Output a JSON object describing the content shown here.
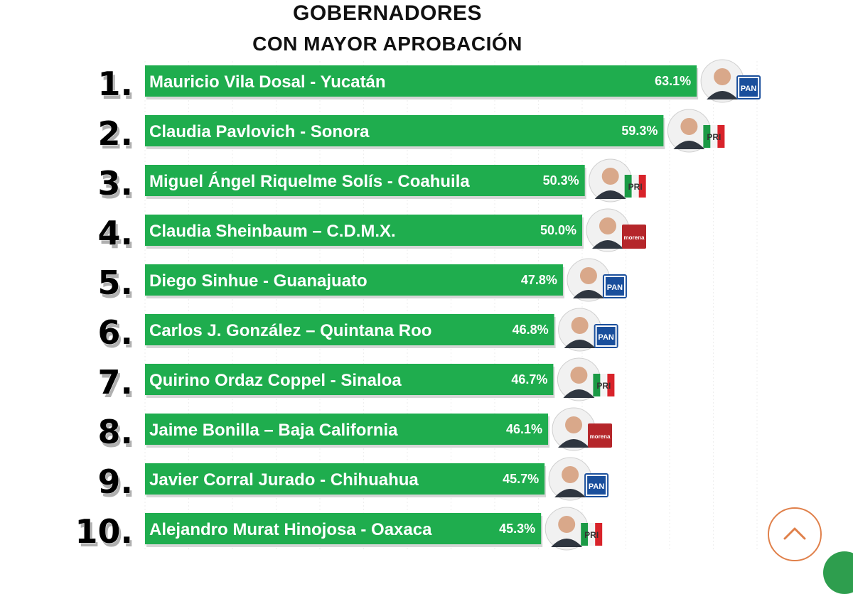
{
  "colors": {
    "bar": "#1fad4e",
    "bar_shadow": "#d6d6d6",
    "pan": "#1a4f9c",
    "pri_green": "#1b9a45",
    "pri_red": "#d8232a",
    "morena": "#b5262a"
  },
  "chart_data": {
    "type": "bar",
    "orientation": "horizontal",
    "title": "GOBERNADORES",
    "subtitle": "CON MAYOR APROBACIÓN",
    "xlabel": "",
    "ylabel": "",
    "xlim": [
      0,
      70
    ],
    "grid": true,
    "legend": "none",
    "ranks": [
      "1.",
      "2.",
      "3.",
      "4.",
      "5.",
      "6.",
      "7.",
      "8.",
      "9.",
      "10."
    ],
    "categories": [
      "Mauricio Vila Dosal - Yucatán",
      "Claudia Pavlovich - Sonora",
      "Miguel Ángel Riquelme Solís - Coahuila",
      "Claudia Sheinbaum – C.D.M.X.",
      "Diego Sinhue - Guanajuato",
      "Carlos J. González – Quintana Roo",
      "Quirino Ordaz Coppel - Sinaloa",
      "Jaime Bonilla – Baja California",
      "Javier Corral Jurado - Chihuahua",
      "Alejandro Murat Hinojosa - Oaxaca"
    ],
    "values": [
      63.1,
      59.3,
      50.3,
      50.0,
      47.8,
      46.8,
      46.7,
      46.1,
      45.7,
      45.3
    ],
    "value_labels": [
      "63.1%",
      "59.3%",
      "50.3%",
      "50.0%",
      "47.8%",
      "46.8%",
      "46.7%",
      "46.1%",
      "45.7%",
      "45.3%"
    ],
    "party_icons": [
      "pan-logo-icon",
      "pri-logo-icon",
      "pri-logo-icon",
      "morena-logo-icon",
      "pan-logo-icon",
      "pan-logo-icon",
      "pri-logo-icon",
      "morena-logo-icon",
      "pan-logo-icon",
      "pri-logo-icon"
    ],
    "party_logo_text": {
      "pan": "PAN",
      "pri": "PRI",
      "morena": "morena"
    }
  }
}
